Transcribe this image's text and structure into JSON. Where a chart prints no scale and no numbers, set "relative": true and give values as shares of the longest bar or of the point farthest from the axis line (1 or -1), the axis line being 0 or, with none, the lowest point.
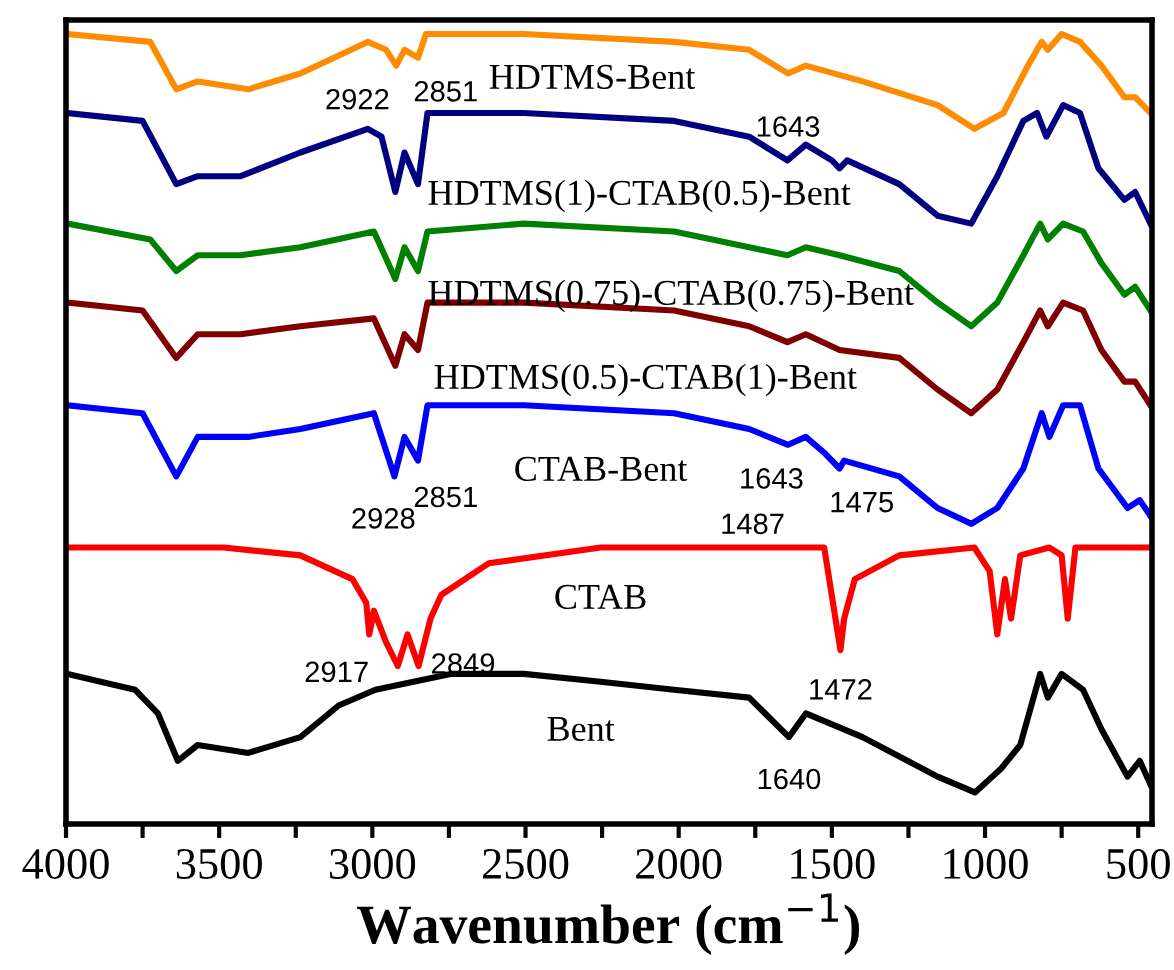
{
  "chart_data": {
    "type": "line",
    "relative": true,
    "xlabel": "Wavenumber (cm$^{−1}$)",
    "xlim": [
      4000,
      455
    ],
    "xticks": [
      4000,
      {
        "value": 3750,
        "label": null
      },
      3500,
      {
        "value": 3250,
        "label": null
      },
      3000,
      {
        "value": 2750,
        "label": null
      },
      2500,
      {
        "value": 2250,
        "label": null
      },
      2000,
      {
        "value": 1750,
        "label": null
      },
      1500,
      {
        "value": 1250,
        "label": null
      },
      1000,
      {
        "value": 750,
        "label": null
      },
      500
    ],
    "tick_labels": "x",
    "grid": false,
    "legend": false,
    "marker": "none",
    "line_style": "solid",
    "series": [
      {
        "name": "HDTMS-Bent",
        "color": "#ff8c00",
        "x": [
          3995,
          3725,
          3640,
          3570,
          3405,
          3235,
          3015,
          2955,
          2922,
          2895,
          2851,
          2825,
          2505,
          2015,
          1770,
          1643,
          1585,
          1400,
          1155,
          1035,
          940,
          860,
          815,
          795,
          750,
          690,
          620,
          545,
          510,
          460
        ],
        "values": [
          1.0,
          0.99,
          0.93,
          0.94,
          0.93,
          0.95,
          0.99,
          0.98,
          0.96,
          0.98,
          0.97,
          1.0,
          1.0,
          0.99,
          0.98,
          0.95,
          0.96,
          0.94,
          0.91,
          0.88,
          0.9,
          0.96,
          0.99,
          0.98,
          1.0,
          0.99,
          0.96,
          0.92,
          0.92,
          0.9
        ]
      },
      {
        "name": "HDTMS(1)-CTAB(0.5)-Bent",
        "color": "#000080",
        "x": [
          3995,
          3750,
          3640,
          3570,
          3430,
          3235,
          3015,
          2970,
          2925,
          2895,
          2851,
          2820,
          2505,
          2015,
          1770,
          1645,
          1585,
          1500,
          1475,
          1450,
          1280,
          1155,
          1045,
          960,
          875,
          830,
          800,
          745,
          690,
          630,
          545,
          510,
          460
        ],
        "values": [
          0.9,
          0.89,
          0.81,
          0.82,
          0.82,
          0.85,
          0.88,
          0.87,
          0.8,
          0.85,
          0.81,
          0.9,
          0.9,
          0.89,
          0.87,
          0.84,
          0.86,
          0.84,
          0.83,
          0.84,
          0.81,
          0.77,
          0.76,
          0.82,
          0.89,
          0.9,
          0.87,
          0.91,
          0.9,
          0.83,
          0.79,
          0.8,
          0.76
        ]
      },
      {
        "name": "HDTMS(0.75)-CTAB(0.75)-Bent",
        "color": "#008000",
        "x": [
          3995,
          3725,
          3640,
          3570,
          3430,
          3235,
          2995,
          2925,
          2895,
          2851,
          2820,
          2505,
          2015,
          1770,
          1645,
          1585,
          1475,
          1280,
          1155,
          1045,
          960,
          875,
          820,
          795,
          745,
          680,
          620,
          545,
          510,
          460
        ],
        "values": [
          0.76,
          0.74,
          0.7,
          0.72,
          0.72,
          0.73,
          0.75,
          0.69,
          0.73,
          0.7,
          0.75,
          0.76,
          0.75,
          0.73,
          0.72,
          0.73,
          0.72,
          0.7,
          0.66,
          0.63,
          0.66,
          0.72,
          0.76,
          0.74,
          0.76,
          0.75,
          0.71,
          0.67,
          0.68,
          0.65
        ]
      },
      {
        "name": "HDTMS(0.5)-CTAB(1)-Bent",
        "color": "#800000",
        "x": [
          3995,
          3750,
          3640,
          3570,
          3430,
          3235,
          2995,
          2925,
          2895,
          2851,
          2820,
          2505,
          2015,
          1770,
          1645,
          1585,
          1475,
          1280,
          1155,
          1045,
          960,
          875,
          820,
          795,
          745,
          680,
          620,
          545,
          510,
          460
        ],
        "values": [
          0.66,
          0.65,
          0.59,
          0.62,
          0.62,
          0.63,
          0.64,
          0.58,
          0.62,
          0.6,
          0.66,
          0.66,
          0.65,
          0.63,
          0.61,
          0.62,
          0.6,
          0.59,
          0.55,
          0.52,
          0.55,
          0.61,
          0.65,
          0.63,
          0.66,
          0.65,
          0.6,
          0.56,
          0.56,
          0.53
        ]
      },
      {
        "name": "CTAB-Bent",
        "color": "#0000ff",
        "x": [
          3995,
          3750,
          3640,
          3570,
          3405,
          3235,
          2995,
          2928,
          2895,
          2851,
          2820,
          2505,
          2015,
          1770,
          1643,
          1585,
          1525,
          1475,
          1460,
          1280,
          1155,
          1045,
          960,
          875,
          815,
          790,
          745,
          690,
          630,
          535,
          495,
          460
        ],
        "values": [
          0.53,
          0.52,
          0.44,
          0.49,
          0.49,
          0.5,
          0.52,
          0.44,
          0.49,
          0.46,
          0.53,
          0.53,
          0.52,
          0.5,
          0.48,
          0.49,
          0.47,
          0.45,
          0.46,
          0.44,
          0.4,
          0.38,
          0.4,
          0.45,
          0.52,
          0.49,
          0.53,
          0.53,
          0.45,
          0.4,
          0.41,
          0.39
        ]
      },
      {
        "name": "CTAB",
        "color": "#ff0000",
        "x": [
          3995,
          3485,
          3235,
          3065,
          3020,
          3010,
          2995,
          2955,
          2917,
          2885,
          2849,
          2810,
          2775,
          2620,
          2255,
          1770,
          1525,
          1472,
          1460,
          1425,
          1280,
          1035,
          985,
          960,
          935,
          915,
          885,
          790,
          750,
          730,
          705,
          460
        ],
        "values": [
          0.35,
          0.35,
          0.34,
          0.31,
          0.28,
          0.24,
          0.27,
          0.23,
          0.2,
          0.24,
          0.2,
          0.26,
          0.29,
          0.33,
          0.35,
          0.35,
          0.35,
          0.22,
          0.26,
          0.31,
          0.34,
          0.35,
          0.32,
          0.24,
          0.31,
          0.26,
          0.34,
          0.35,
          0.34,
          0.26,
          0.35,
          0.35
        ]
      },
      {
        "name": "Bent",
        "color": "#000000",
        "x": [
          3995,
          3775,
          3700,
          3635,
          3570,
          3405,
          3235,
          3110,
          2990,
          2745,
          2505,
          2255,
          2015,
          1770,
          1640,
          1585,
          1400,
          1155,
          1033,
          948,
          885,
          820,
          795,
          750,
          680,
          620,
          535,
          495,
          460
        ],
        "values": [
          0.19,
          0.17,
          0.14,
          0.08,
          0.1,
          0.09,
          0.11,
          0.15,
          0.17,
          0.19,
          0.19,
          0.18,
          0.17,
          0.16,
          0.11,
          0.14,
          0.11,
          0.06,
          0.04,
          0.07,
          0.1,
          0.19,
          0.16,
          0.19,
          0.17,
          0.12,
          0.06,
          0.08,
          0.05
        ]
      }
    ],
    "annotations": [
      {
        "text": "2922",
        "x": 2922,
        "y": 0.96
      },
      {
        "text": "2851",
        "x": 2851,
        "y": 0.97
      },
      {
        "text": "1643",
        "x": 1643,
        "y": 0.95
      },
      {
        "text": "2928",
        "x": 2928,
        "y": 0.44
      },
      {
        "text": "2851",
        "x": 2851,
        "y": 0.46
      },
      {
        "text": "1643",
        "x": 1643,
        "y": 0.48
      },
      {
        "text": "1475",
        "x": 1475,
        "y": 0.45
      },
      {
        "text": "2917",
        "x": 2917,
        "y": 0.2
      },
      {
        "text": "2849",
        "x": 2849,
        "y": 0.2
      },
      {
        "text": "1487",
        "x": 1487,
        "y": 0.31
      },
      {
        "text": "1472",
        "x": 1472,
        "y": 0.22
      },
      {
        "text": "1640",
        "x": 1640,
        "y": 0.11
      }
    ]
  }
}
